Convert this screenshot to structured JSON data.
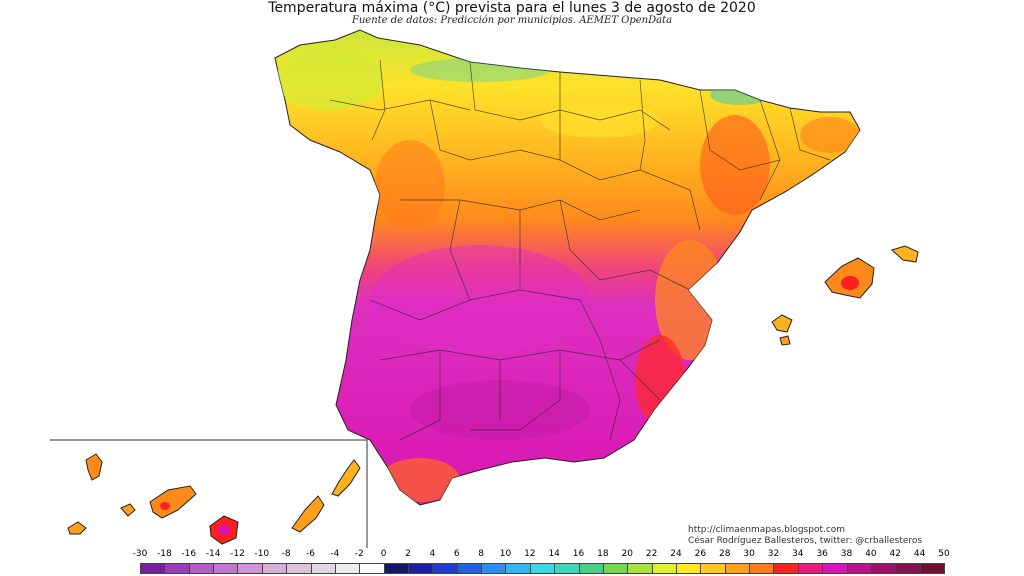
{
  "header": {
    "title": "Temperatura máxima (°C) prevista para el lunes 3 de agosto de 2020",
    "subtitle": "Fuente de datos: Predicción por municipios. AEMET OpenData"
  },
  "credits": {
    "line1": "http://climaenmapas.blogspot.com",
    "line2": "César Rodríguez Ballesteros, twitter: @crballesteros"
  },
  "legend": {
    "labels": [
      "-30",
      "-18",
      "-16",
      "-14",
      "-12",
      "-10",
      "-8",
      "-6",
      "-4",
      "-2",
      "0",
      "2",
      "4",
      "6",
      "8",
      "10",
      "12",
      "14",
      "16",
      "18",
      "20",
      "22",
      "24",
      "26",
      "28",
      "30",
      "32",
      "34",
      "36",
      "38",
      "40",
      "42",
      "44",
      "50"
    ],
    "colors": [
      "#7a1fa0",
      "#9b3cbf",
      "#b45acb",
      "#c676d2",
      "#d393d8",
      "#d9aed6",
      "#ddc4dc",
      "#e2d7e2",
      "#ececec",
      "#ffffff",
      "#16166b",
      "#1c1ca6",
      "#1e3ed3",
      "#2262e6",
      "#2c8df0",
      "#35b5f5",
      "#3bd8e8",
      "#3bd9b9",
      "#44d186",
      "#73d84e",
      "#a9e23a",
      "#dff02c",
      "#ffea20",
      "#ffc71f",
      "#ff9f1c",
      "#ff7a1a",
      "#ff2020",
      "#ee1680",
      "#dd12b8",
      "#c01090",
      "#a00e6c",
      "#88104c",
      "#6e1030"
    ]
  },
  "map": {
    "regions": [
      {
        "name": "peninsula-north",
        "temp_range": "22-30"
      },
      {
        "name": "peninsula-south",
        "temp_range": "36-42"
      },
      {
        "name": "balearic-islands",
        "temp_range": "28-34"
      },
      {
        "name": "canary-islands",
        "temp_range": "26-34"
      }
    ]
  }
}
